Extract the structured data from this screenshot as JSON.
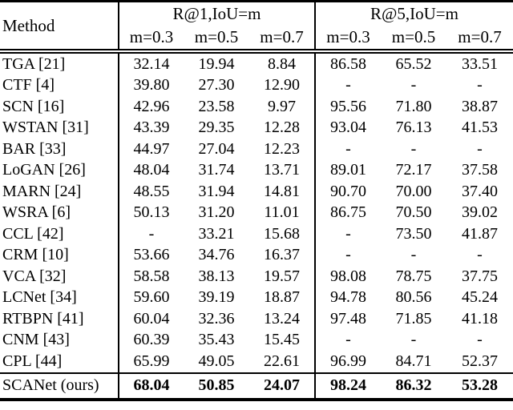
{
  "table": {
    "method_header": "Method",
    "groups": [
      {
        "label": "R@1,IoU=m",
        "subs": [
          "m=0.3",
          "m=0.5",
          "m=0.7"
        ]
      },
      {
        "label": "R@5,IoU=m",
        "subs": [
          "m=0.3",
          "m=0.5",
          "m=0.7"
        ]
      }
    ],
    "rows": [
      {
        "method": "TGA [21]",
        "values": [
          "32.14",
          "19.94",
          "8.84",
          "86.58",
          "65.52",
          "33.51"
        ],
        "bold": false
      },
      {
        "method": "CTF [4]",
        "values": [
          "39.80",
          "27.30",
          "12.90",
          "-",
          "-",
          "-"
        ],
        "bold": false
      },
      {
        "method": "SCN [16]",
        "values": [
          "42.96",
          "23.58",
          "9.97",
          "95.56",
          "71.80",
          "38.87"
        ],
        "bold": false
      },
      {
        "method": "WSTAN [31]",
        "values": [
          "43.39",
          "29.35",
          "12.28",
          "93.04",
          "76.13",
          "41.53"
        ],
        "bold": false
      },
      {
        "method": "BAR [33]",
        "values": [
          "44.97",
          "27.04",
          "12.23",
          "-",
          "-",
          "-"
        ],
        "bold": false
      },
      {
        "method": "LoGAN [26]",
        "values": [
          "48.04",
          "31.74",
          "13.71",
          "89.01",
          "72.17",
          "37.58"
        ],
        "bold": false
      },
      {
        "method": "MARN [24]",
        "values": [
          "48.55",
          "31.94",
          "14.81",
          "90.70",
          "70.00",
          "37.40"
        ],
        "bold": false
      },
      {
        "method": "WSRA [6]",
        "values": [
          "50.13",
          "31.20",
          "11.01",
          "86.75",
          "70.50",
          "39.02"
        ],
        "bold": false
      },
      {
        "method": "CCL [42]",
        "values": [
          "-",
          "33.21",
          "15.68",
          "-",
          "73.50",
          "41.87"
        ],
        "bold": false
      },
      {
        "method": "CRM [10]",
        "values": [
          "53.66",
          "34.76",
          "16.37",
          "-",
          "-",
          "-"
        ],
        "bold": false
      },
      {
        "method": "VCA [32]",
        "values": [
          "58.58",
          "38.13",
          "19.57",
          "98.08",
          "78.75",
          "37.75"
        ],
        "bold": false
      },
      {
        "method": "LCNet [34]",
        "values": [
          "59.60",
          "39.19",
          "18.87",
          "94.78",
          "80.56",
          "45.24"
        ],
        "bold": false
      },
      {
        "method": "RTBPN [41]",
        "values": [
          "60.04",
          "32.36",
          "13.24",
          "97.48",
          "71.85",
          "41.18"
        ],
        "bold": false
      },
      {
        "method": "CNM [43]",
        "values": [
          "60.39",
          "35.43",
          "15.45",
          "-",
          "-",
          "-"
        ],
        "bold": false
      },
      {
        "method": "CPL [44]",
        "values": [
          "65.99",
          "49.05",
          "22.61",
          "96.99",
          "84.71",
          "52.37"
        ],
        "bold": false
      },
      {
        "method": "SCANet (ours)",
        "values": [
          "68.04",
          "50.85",
          "24.07",
          "98.24",
          "86.32",
          "53.28"
        ],
        "bold": true
      }
    ],
    "colors": {
      "text": "#000000",
      "background": "#ffffff",
      "rule": "#000000"
    }
  }
}
